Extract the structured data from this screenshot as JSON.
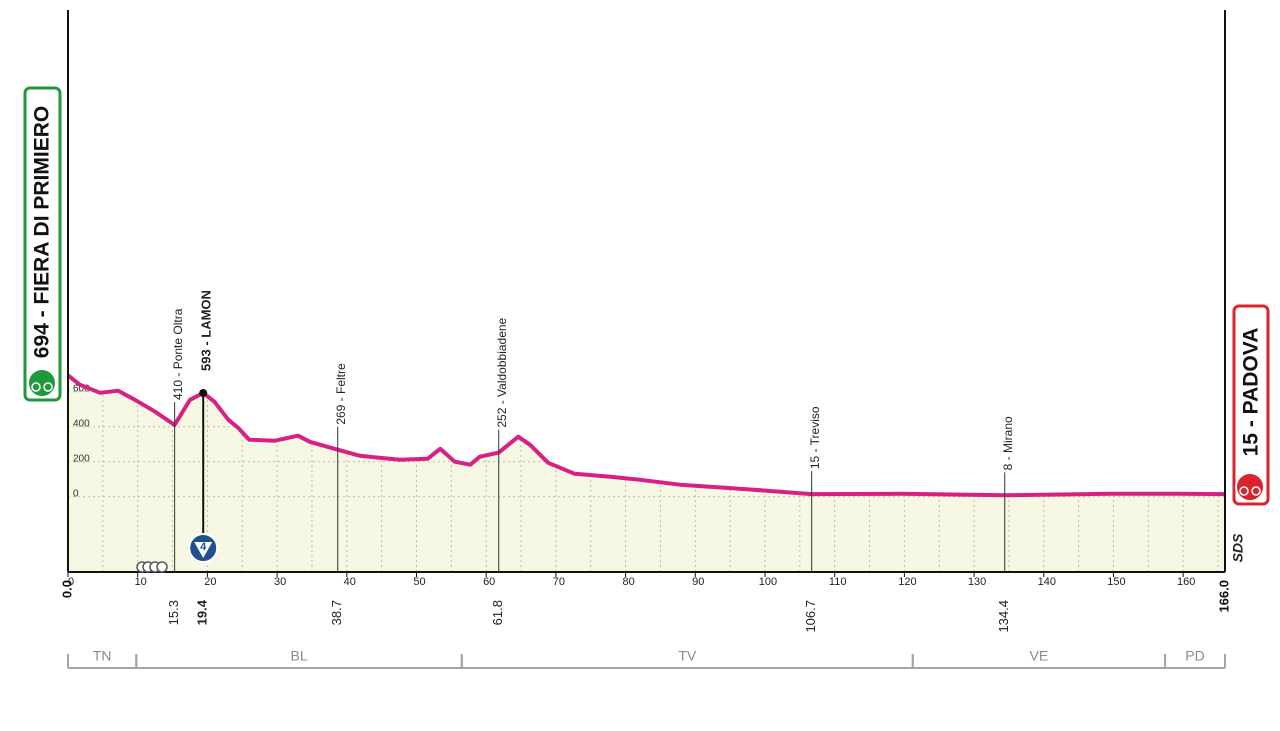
{
  "chart_data": {
    "type": "profile",
    "start": {
      "label": "694 - FIERA DI PRIMIERO",
      "km": {
        "value": 0,
        "label": "0.0"
      }
    },
    "finish": {
      "label": "15 - PADOVA",
      "km": {
        "value": 166,
        "label": "166.0"
      }
    },
    "x": [
      0,
      1.7,
      4.6,
      7.2,
      9.6,
      12.5,
      15.3,
      17.5,
      19.4,
      21,
      23,
      24.4,
      26,
      29.7,
      33,
      34.7,
      38.7,
      41.9,
      47.6,
      51.6,
      53.4,
      55.5,
      57.7,
      59.1,
      61.8,
      64.6,
      66.3,
      68.9,
      72.7,
      77.8,
      82.1,
      87.8,
      96.4,
      106.7,
      119.4,
      134.4,
      149.5,
      159.5,
      166
    ],
    "values": [
      694,
      640,
      594,
      606,
      554,
      486,
      410,
      554,
      593,
      543,
      440,
      394,
      326,
      320,
      349,
      314,
      269,
      234,
      211,
      217,
      274,
      200,
      183,
      229,
      252,
      343,
      297,
      194,
      131,
      114,
      97,
      69,
      46,
      15,
      17,
      8,
      17,
      17,
      15
    ],
    "color": "#d81f85",
    "fill": "#f6f8e3",
    "xlim": [
      0,
      166
    ],
    "ylim": [
      -430,
      2781
    ],
    "xticks": [
      0,
      10,
      20,
      30,
      40,
      50,
      60,
      70,
      80,
      90,
      100,
      110,
      120,
      130,
      140,
      150,
      160
    ],
    "xminorticks": [
      5,
      15,
      25,
      35,
      45,
      55,
      65,
      75,
      85,
      95,
      105,
      115,
      125,
      135,
      145,
      155,
      165
    ],
    "yticks": [
      0,
      200,
      400,
      600
    ],
    "grid": true,
    "waypoints": [
      {
        "label": "410 - Ponte Oltra",
        "altitude": 410,
        "km": 15.3,
        "bold": false
      },
      {
        "label": "593 - LAMON",
        "altitude": 593,
        "km": 19.4,
        "bold": true,
        "climb_category": "4"
      },
      {
        "label": "269 - Feltre",
        "altitude": 269,
        "km": 38.7,
        "bold": false
      },
      {
        "label": "252 - Valdobbiadene",
        "altitude": 252,
        "km": 61.8,
        "bold": false
      },
      {
        "label": "15 - Treviso",
        "altitude": 15,
        "km": 106.7,
        "bold": false
      },
      {
        "label": "8 - Mirano",
        "altitude": 8,
        "km": 134.4,
        "bold": false
      }
    ],
    "regions": [
      {
        "name": "TN",
        "start": 0,
        "end": 9.8
      },
      {
        "name": "BL",
        "start": 9.8,
        "end": 56.5
      },
      {
        "name": "TV",
        "start": 56.5,
        "end": 121.2
      },
      {
        "name": "VE",
        "start": 121.2,
        "end": 157.4
      },
      {
        "name": "PD",
        "start": 157.4,
        "end": 166
      }
    ],
    "logo": "SDS"
  }
}
